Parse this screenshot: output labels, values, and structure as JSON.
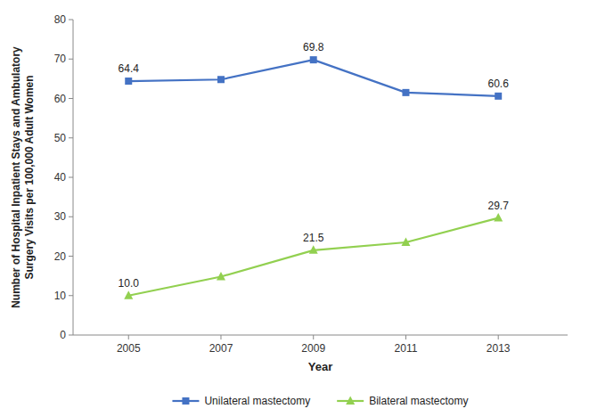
{
  "chart_data": {
    "type": "line",
    "x": [
      2005,
      2007,
      2009,
      2011,
      2013
    ],
    "series": [
      {
        "name": "Unilateral mastectomy",
        "color": "#4472c4",
        "marker": "square",
        "values": [
          64.4,
          64.8,
          69.8,
          61.5,
          60.6
        ],
        "value_labels": [
          "64.4",
          null,
          "69.8",
          null,
          "60.6"
        ]
      },
      {
        "name": "Bilateral mastectomy",
        "color": "#92d050",
        "marker": "triangle",
        "values": [
          10.0,
          14.8,
          21.5,
          23.5,
          29.7
        ],
        "value_labels": [
          "10.0",
          null,
          "21.5",
          null,
          "29.7"
        ]
      }
    ],
    "xlabel": "Year",
    "ylabel": "Number of Hospital Inpatient Stays and Ambulatory\n Surgery Visits per 100,000 Adult Women",
    "xlim": [
      2003.8,
      2014.5
    ],
    "xticks": [
      2005,
      2007,
      2009,
      2011,
      2013
    ],
    "ylim": [
      0,
      80
    ],
    "yticks": [
      0,
      10,
      20,
      30,
      40,
      50,
      60,
      70,
      80
    ],
    "data_labels": true,
    "grid": false,
    "legend": "bottom"
  }
}
